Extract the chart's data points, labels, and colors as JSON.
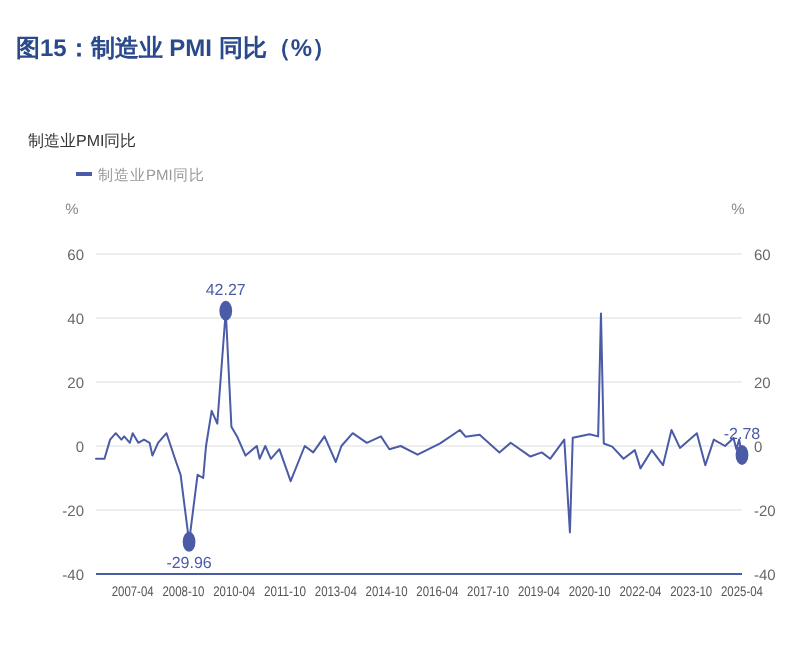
{
  "chart_data": {
    "type": "line",
    "title": "图15：制造业 PMI 同比（%）",
    "subtitle": "制造业PMI同比",
    "ylabel": "%",
    "y2label": "%",
    "legend": "top left",
    "grid": "y",
    "marker": "none",
    "line_style": "solid",
    "xlim": [
      "2006-03",
      "2025-04"
    ],
    "xticks": [
      "2007-04",
      "2008-10",
      "2010-04",
      "2011-10",
      "2013-04",
      "2014-10",
      "2016-04",
      "2017-10",
      "2019-04",
      "2020-10",
      "2022-04",
      "2023-10",
      "2025-04"
    ],
    "ylim": [
      -40,
      60
    ],
    "yticks": [
      -40,
      -20,
      0,
      20,
      40,
      60
    ],
    "y2lim": [
      -40,
      60
    ],
    "y2ticks": [
      -40,
      -20,
      0,
      20,
      40,
      60
    ],
    "series": [
      {
        "name": "制造业PMI同比",
        "color": "#4b5ba6",
        "x": [
          "2006-03",
          "2006-06",
          "2006-08",
          "2006-10",
          "2006-12",
          "2007-01",
          "2007-03",
          "2007-04",
          "2007-06",
          "2007-08",
          "2007-10",
          "2007-11",
          "2008-01",
          "2008-04",
          "2008-07",
          "2008-09",
          "2008-12",
          "2009-03",
          "2009-05",
          "2009-06",
          "2009-08",
          "2009-10",
          "2010-01",
          "2010-03",
          "2010-05",
          "2010-08",
          "2010-12",
          "2011-01",
          "2011-03",
          "2011-05",
          "2011-08",
          "2011-12",
          "2012-05",
          "2012-08",
          "2012-12",
          "2013-04",
          "2013-06",
          "2013-10",
          "2014-03",
          "2014-08",
          "2014-11",
          "2015-03",
          "2015-09",
          "2016-05",
          "2016-12",
          "2017-02",
          "2017-07",
          "2018-02",
          "2018-06",
          "2019-01",
          "2019-05",
          "2019-08",
          "2020-01",
          "2020-03",
          "2020-04",
          "2020-10",
          "2021-01",
          "2021-02",
          "2021-03",
          "2021-06",
          "2021-10",
          "2022-02",
          "2022-04",
          "2022-08",
          "2022-12",
          "2023-03",
          "2023-06",
          "2023-12",
          "2024-03",
          "2024-06",
          "2024-10",
          "2025-01",
          "2025-02",
          "2025-03",
          "2025-04"
        ],
        "values": [
          -4,
          -4,
          2,
          4,
          2,
          3,
          1,
          4,
          1,
          2,
          1,
          -3,
          1,
          4,
          -4,
          -9,
          -29.96,
          -9,
          -10,
          0,
          11,
          7,
          42.27,
          6,
          3,
          -3,
          0,
          -4,
          0,
          -4,
          -1,
          -11,
          0,
          -2,
          3,
          -5,
          0,
          4,
          1,
          3,
          -1,
          0,
          -2.7,
          0.8,
          5,
          2.9,
          3.5,
          -2,
          1,
          -3.3,
          -2,
          -4,
          2,
          -27,
          2.6,
          3.7,
          3,
          41.4,
          0.8,
          -0.2,
          -4,
          -1.3,
          -7,
          -1.3,
          -6,
          5,
          -0.6,
          4,
          -6,
          2,
          0,
          2.5,
          -1,
          2,
          -2.78
        ]
      }
    ],
    "annotations": [
      {
        "text": "42.27",
        "x": "2010-01",
        "y": 42.27
      },
      {
        "text": "-29.96",
        "x": "2008-12",
        "y": -29.96
      },
      {
        "text": "-2.78",
        "x": "2025-04",
        "y": -2.78
      }
    ]
  }
}
